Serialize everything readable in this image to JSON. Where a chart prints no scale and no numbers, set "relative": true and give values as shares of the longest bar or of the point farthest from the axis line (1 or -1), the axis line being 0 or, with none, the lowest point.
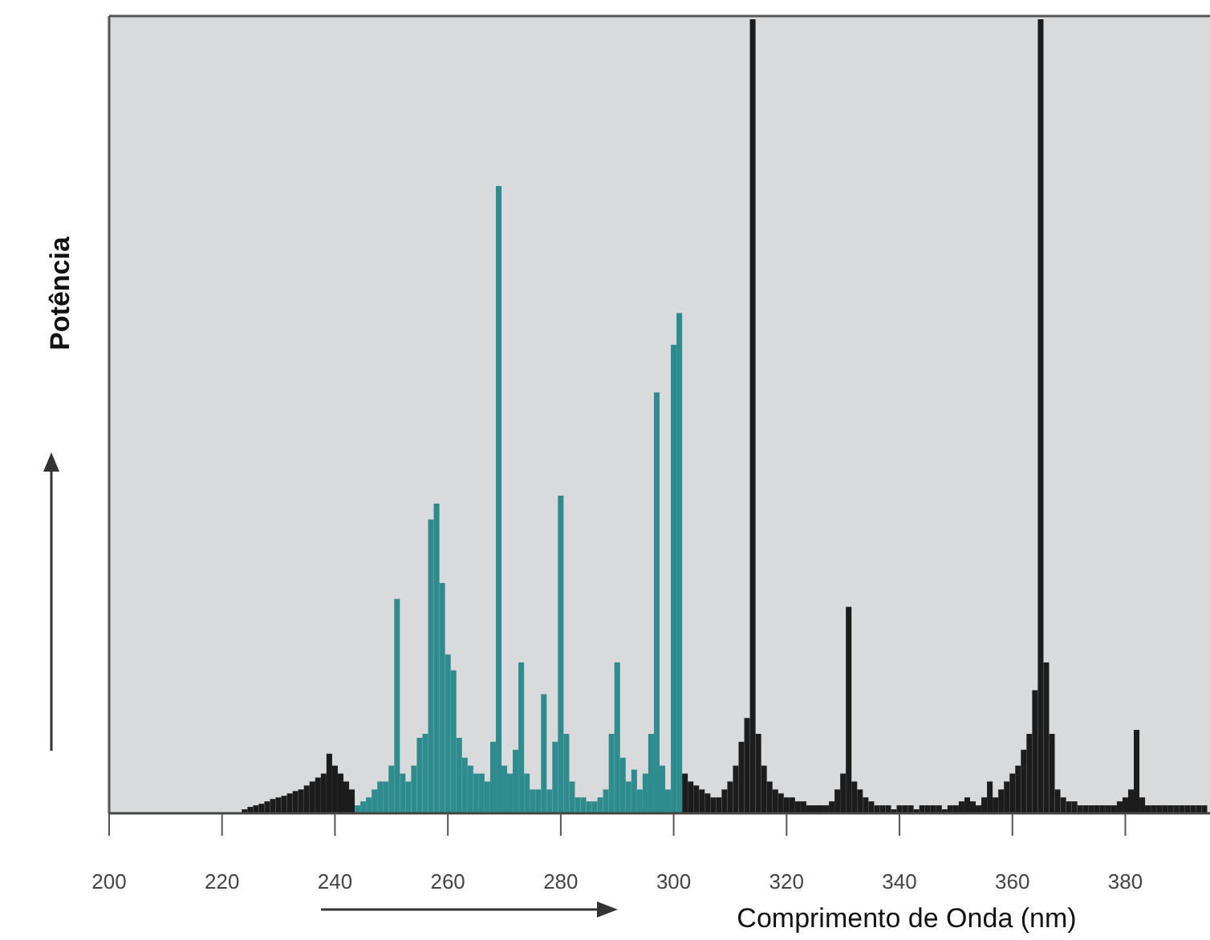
{
  "chart_data": {
    "type": "bar",
    "relative": true,
    "xlabel": "Comprimento de Onda (nm)",
    "ylabel": "Potência",
    "xlim": [
      200,
      395
    ],
    "xticks": [
      200,
      220,
      240,
      260,
      280,
      300,
      320,
      340,
      360,
      380
    ],
    "series": [
      {
        "color": "#1c1c1c",
        "x": [
          224,
          225,
          226,
          227,
          228,
          229,
          230,
          231,
          232,
          233,
          234,
          235,
          236,
          237,
          238,
          239,
          240,
          241,
          242,
          243,
          302,
          303,
          304,
          305,
          306,
          307,
          308,
          309,
          310,
          311,
          312,
          313,
          314,
          315,
          316,
          317,
          318,
          319,
          320,
          321,
          322,
          323,
          324,
          325,
          326,
          327,
          328,
          329,
          330,
          331,
          332,
          333,
          334,
          335,
          336,
          337,
          338,
          339,
          340,
          341,
          342,
          343,
          344,
          345,
          346,
          347,
          348,
          349,
          350,
          351,
          352,
          353,
          354,
          355,
          356,
          357,
          358,
          359,
          360,
          361,
          362,
          363,
          364,
          365,
          366,
          367,
          368,
          369,
          370,
          371,
          372,
          373,
          374,
          375,
          376,
          377,
          378,
          379,
          380,
          381,
          382,
          383,
          384,
          385,
          386,
          387,
          388,
          389,
          390,
          391,
          392,
          393,
          394
        ],
        "values": [
          0.005,
          0.008,
          0.01,
          0.012,
          0.015,
          0.018,
          0.02,
          0.022,
          0.025,
          0.028,
          0.03,
          0.035,
          0.04,
          0.045,
          0.05,
          0.075,
          0.06,
          0.05,
          0.04,
          0.03,
          0.05,
          0.04,
          0.035,
          0.03,
          0.025,
          0.02,
          0.02,
          0.03,
          0.04,
          0.06,
          0.09,
          0.12,
          1,
          0.1,
          0.06,
          0.04,
          0.03,
          0.025,
          0.02,
          0.02,
          0.015,
          0.015,
          0.01,
          0.01,
          0.01,
          0.01,
          0.015,
          0.03,
          0.05,
          0.26,
          0.04,
          0.03,
          0.02,
          0.015,
          0.01,
          0.01,
          0.01,
          0.005,
          0.01,
          0.01,
          0.01,
          0.005,
          0.01,
          0.01,
          0.01,
          0.01,
          0.005,
          0.01,
          0.01,
          0.015,
          0.02,
          0.015,
          0.01,
          0.02,
          0.04,
          0.02,
          0.03,
          0.04,
          0.05,
          0.06,
          0.08,
          0.1,
          0.155,
          1,
          0.19,
          0.1,
          0.03,
          0.02,
          0.015,
          0.015,
          0.01,
          0.01,
          0.01,
          0.01,
          0.01,
          0.01,
          0.01,
          0.015,
          0.02,
          0.03,
          0.105,
          0.02,
          0.01,
          0.01,
          0.01,
          0.01,
          0.01,
          0.01,
          0.01,
          0.01,
          0.01,
          0.01,
          0.01
        ]
      },
      {
        "color": "#2f8c8e",
        "x": [
          244,
          245,
          246,
          247,
          248,
          249,
          250,
          251,
          252,
          253,
          254,
          255,
          256,
          257,
          258,
          259,
          260,
          261,
          262,
          263,
          264,
          265,
          266,
          267,
          268,
          269,
          270,
          271,
          272,
          273,
          274,
          275,
          276,
          277,
          278,
          279,
          280,
          281,
          282,
          283,
          284,
          285,
          286,
          287,
          288,
          289,
          290,
          291,
          292,
          293,
          294,
          295,
          296,
          297,
          298,
          299,
          300,
          301
        ],
        "values": [
          0.01,
          0.015,
          0.02,
          0.03,
          0.04,
          0.04,
          0.06,
          0.27,
          0.05,
          0.04,
          0.06,
          0.095,
          0.1,
          0.37,
          0.39,
          0.29,
          0.2,
          0.18,
          0.095,
          0.07,
          0.06,
          0.05,
          0.05,
          0.04,
          0.09,
          0.79,
          0.06,
          0.05,
          0.08,
          0.19,
          0.05,
          0.03,
          0.03,
          0.15,
          0.03,
          0.09,
          0.4,
          0.1,
          0.04,
          0.02,
          0.02,
          0.015,
          0.015,
          0.02,
          0.03,
          0.1,
          0.19,
          0.07,
          0.04,
          0.055,
          0.03,
          0.05,
          0.1,
          0.53,
          0.06,
          0.03,
          0.59,
          0.63
        ]
      }
    ]
  }
}
